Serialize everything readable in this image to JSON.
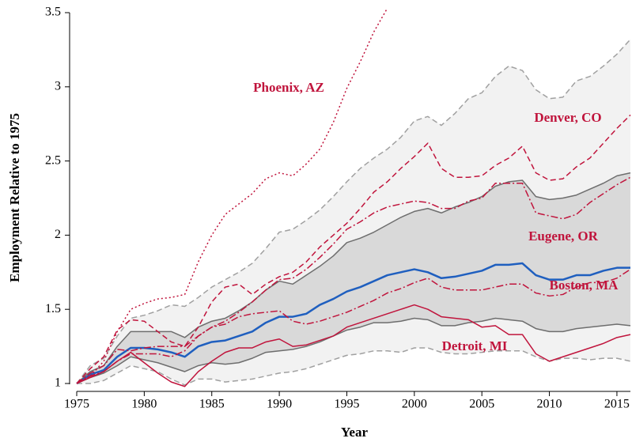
{
  "chart_data": {
    "type": "line",
    "xlabel": "Year",
    "ylabel": "Employment Relative to 1975",
    "x": [
      1975,
      1976,
      1977,
      1978,
      1979,
      1980,
      1981,
      1982,
      1983,
      1984,
      1985,
      1986,
      1987,
      1988,
      1989,
      1990,
      1991,
      1992,
      1993,
      1994,
      1995,
      1996,
      1997,
      1998,
      1999,
      2000,
      2001,
      2002,
      2003,
      2004,
      2005,
      2006,
      2007,
      2008,
      2009,
      2010,
      2011,
      2012,
      2013,
      2014,
      2015,
      2016
    ],
    "xlim": [
      1975,
      2016
    ],
    "xticks": [
      1975,
      1980,
      1985,
      1990,
      1995,
      2000,
      2005,
      2010,
      2015
    ],
    "ylim": [
      1,
      3.5
    ],
    "yticks": [
      1,
      1.5,
      2,
      2.5,
      3,
      3.5
    ],
    "bands": [
      {
        "color": "#f2f2f2",
        "line_color": "#a0a0a0",
        "dash": "dashed",
        "upper": [
          1.0,
          1.12,
          1.17,
          1.32,
          1.44,
          1.46,
          1.49,
          1.53,
          1.52,
          1.58,
          1.65,
          1.7,
          1.75,
          1.81,
          1.91,
          2.02,
          2.04,
          2.1,
          2.17,
          2.26,
          2.36,
          2.45,
          2.52,
          2.58,
          2.66,
          2.77,
          2.8,
          2.74,
          2.82,
          2.92,
          2.96,
          3.07,
          3.14,
          3.11,
          2.98,
          2.92,
          2.93,
          3.04,
          3.07,
          3.14,
          3.22,
          3.32
        ],
        "lower": [
          1.0,
          1.0,
          1.02,
          1.07,
          1.12,
          1.1,
          1.08,
          1.03,
          0.99,
          1.03,
          1.03,
          1.01,
          1.02,
          1.03,
          1.05,
          1.07,
          1.08,
          1.1,
          1.13,
          1.16,
          1.19,
          1.2,
          1.22,
          1.22,
          1.21,
          1.24,
          1.24,
          1.21,
          1.2,
          1.2,
          1.21,
          1.22,
          1.22,
          1.22,
          1.18,
          1.15,
          1.17,
          1.17,
          1.16,
          1.17,
          1.17,
          1.15
        ]
      },
      {
        "color": "#d9d9d9",
        "line_color": "#6e6e6e",
        "dash": "solid",
        "upper": [
          1.0,
          1.08,
          1.12,
          1.25,
          1.35,
          1.35,
          1.35,
          1.35,
          1.31,
          1.38,
          1.42,
          1.44,
          1.49,
          1.55,
          1.63,
          1.69,
          1.67,
          1.73,
          1.79,
          1.86,
          1.95,
          1.98,
          2.02,
          2.07,
          2.12,
          2.16,
          2.18,
          2.15,
          2.19,
          2.22,
          2.26,
          2.33,
          2.36,
          2.37,
          2.26,
          2.24,
          2.25,
          2.27,
          2.31,
          2.35,
          2.4,
          2.42
        ],
        "lower": [
          1.0,
          1.04,
          1.07,
          1.12,
          1.18,
          1.16,
          1.14,
          1.11,
          1.08,
          1.12,
          1.14,
          1.13,
          1.14,
          1.17,
          1.21,
          1.22,
          1.23,
          1.25,
          1.28,
          1.32,
          1.36,
          1.38,
          1.41,
          1.41,
          1.42,
          1.44,
          1.43,
          1.39,
          1.39,
          1.41,
          1.42,
          1.44,
          1.43,
          1.42,
          1.37,
          1.35,
          1.35,
          1.37,
          1.38,
          1.39,
          1.4,
          1.39
        ]
      }
    ],
    "series": [
      {
        "color": "#1f5fbf",
        "dash": "solid",
        "width": 2.5,
        "values": [
          1.0,
          1.06,
          1.09,
          1.18,
          1.24,
          1.24,
          1.23,
          1.21,
          1.18,
          1.25,
          1.28,
          1.29,
          1.32,
          1.35,
          1.41,
          1.45,
          1.45,
          1.47,
          1.53,
          1.57,
          1.62,
          1.65,
          1.69,
          1.73,
          1.75,
          1.77,
          1.75,
          1.71,
          1.72,
          1.74,
          1.76,
          1.8,
          1.8,
          1.81,
          1.73,
          1.7,
          1.7,
          1.73,
          1.73,
          1.76,
          1.78,
          1.78
        ]
      },
      {
        "name": "Phoenix, AZ",
        "color": "#c0143c",
        "dash": "dotted",
        "width": 1.5,
        "values": [
          1.0,
          1.05,
          1.15,
          1.35,
          1.5,
          1.54,
          1.57,
          1.58,
          1.6,
          1.82,
          2.0,
          2.14,
          2.21,
          2.28,
          2.38,
          2.42,
          2.4,
          2.48,
          2.58,
          2.76,
          2.99,
          3.17,
          3.37,
          3.53,
          null,
          null,
          null,
          null,
          null,
          null,
          null,
          null,
          null,
          null,
          null,
          null,
          null,
          null,
          null,
          null,
          null,
          null
        ]
      },
      {
        "name": "Denver, CO",
        "color": "#c0143c",
        "dash": "dashed",
        "width": 1.5,
        "values": [
          1.0,
          1.1,
          1.18,
          1.36,
          1.43,
          1.42,
          1.35,
          1.28,
          1.25,
          1.38,
          1.55,
          1.65,
          1.67,
          1.6,
          1.67,
          1.72,
          1.75,
          1.82,
          1.92,
          2.0,
          2.08,
          2.18,
          2.29,
          2.36,
          2.45,
          2.53,
          2.62,
          2.45,
          2.39,
          2.39,
          2.4,
          2.47,
          2.52,
          2.6,
          2.42,
          2.37,
          2.38,
          2.46,
          2.52,
          2.62,
          2.72,
          2.81
        ]
      },
      {
        "name": "Eugene, OR",
        "color": "#c0143c",
        "dash": "dashdot",
        "width": 1.5,
        "values": [
          1.0,
          1.07,
          1.12,
          1.23,
          1.22,
          1.24,
          1.25,
          1.25,
          1.25,
          1.32,
          1.38,
          1.42,
          1.48,
          1.55,
          1.63,
          1.7,
          1.71,
          1.77,
          1.85,
          1.94,
          2.04,
          2.09,
          2.15,
          2.19,
          2.21,
          2.23,
          2.22,
          2.18,
          2.18,
          2.23,
          2.25,
          2.35,
          2.35,
          2.35,
          2.15,
          2.13,
          2.11,
          2.14,
          2.22,
          2.28,
          2.34,
          2.39
        ]
      },
      {
        "name": "Boston, MA",
        "color": "#c0143c",
        "dash": "dashdot",
        "width": 1.5,
        "values": [
          1.0,
          1.05,
          1.08,
          1.15,
          1.2,
          1.2,
          1.2,
          1.18,
          1.22,
          1.32,
          1.38,
          1.4,
          1.45,
          1.47,
          1.48,
          1.49,
          1.42,
          1.4,
          1.42,
          1.45,
          1.48,
          1.52,
          1.56,
          1.61,
          1.64,
          1.68,
          1.71,
          1.65,
          1.63,
          1.63,
          1.63,
          1.65,
          1.67,
          1.67,
          1.61,
          1.59,
          1.6,
          1.65,
          1.68,
          1.68,
          1.71,
          1.77
        ]
      },
      {
        "name": "Detroit, MI",
        "color": "#c0143c",
        "dash": "solid",
        "width": 1.5,
        "values": [
          1.0,
          1.04,
          1.08,
          1.15,
          1.21,
          1.14,
          1.07,
          1.01,
          0.98,
          1.08,
          1.15,
          1.21,
          1.24,
          1.24,
          1.28,
          1.3,
          1.25,
          1.26,
          1.29,
          1.32,
          1.38,
          1.41,
          1.44,
          1.47,
          1.5,
          1.53,
          1.5,
          1.45,
          1.44,
          1.43,
          1.38,
          1.39,
          1.33,
          1.33,
          1.2,
          1.15,
          1.18,
          1.21,
          1.24,
          1.27,
          1.31,
          1.33
        ]
      }
    ]
  }
}
